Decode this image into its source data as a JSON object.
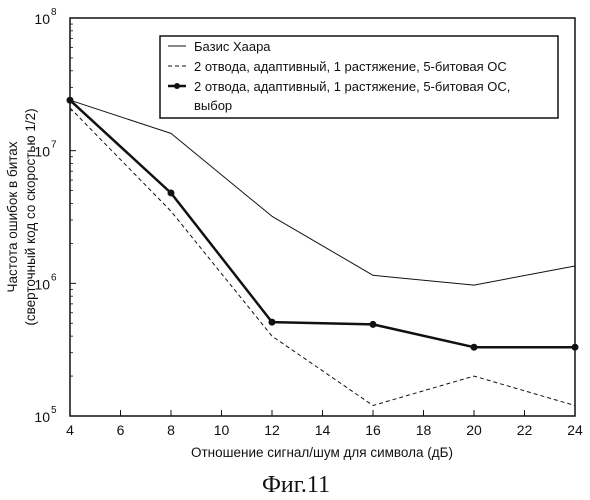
{
  "chart_data": {
    "type": "line",
    "xlabel": "Отношение сигнал/шум для символа (дБ)",
    "ylabel": [
      "Частота ошибок в битах",
      "(сверточный код со скоростью 1/2)"
    ],
    "xlim": [
      4,
      24
    ],
    "ylim": [
      100000,
      100000000
    ],
    "yscale": "log",
    "x_ticks": [
      "4",
      "6",
      "8",
      "10",
      "12",
      "14",
      "16",
      "18",
      "20",
      "22",
      "24"
    ],
    "y_ticks": [
      {
        "base": "10",
        "exp": "5",
        "value": 100000
      },
      {
        "base": "10",
        "exp": "6",
        "value": 1000000
      },
      {
        "base": "10",
        "exp": "7",
        "value": 10000000
      },
      {
        "base": "10",
        "exp": "8",
        "value": 100000000
      }
    ],
    "grid": false,
    "legend_position": "top-right",
    "series": [
      {
        "name": "Базис Хаара",
        "style": "thin-solid",
        "legend_lines": [
          "Базис Хаара"
        ],
        "x": [
          4,
          8,
          12,
          16,
          20,
          24
        ],
        "y": [
          24000000,
          13500000,
          3200000,
          1150000,
          970000,
          1350000
        ]
      },
      {
        "name": "2 отвода, адаптивный, 1 растяжение, 5-битовая ОС",
        "style": "dashed",
        "legend_lines": [
          "2 отвода, адаптивный, 1 растяжение, 5-битовая ОС"
        ],
        "x": [
          4,
          8,
          12,
          16,
          20,
          24
        ],
        "y": [
          21000000,
          3500000,
          400000,
          120000,
          200000,
          120000
        ]
      },
      {
        "name": "2 отвода, адаптивный, 1 растяжение, 5-битовая ОС, выбор",
        "style": "thick-solid-markers",
        "legend_lines": [
          "2 отвода, адаптивный, 1 растяжение, 5-битовая ОС,",
          "выбор"
        ],
        "x": [
          4,
          8,
          12,
          16,
          20,
          24
        ],
        "y": [
          24000000,
          4800000,
          510000,
          490000,
          330000,
          330000
        ]
      }
    ]
  },
  "caption": "Фиг.11",
  "colors": {
    "ink": "#111111",
    "background": "#ffffff"
  }
}
